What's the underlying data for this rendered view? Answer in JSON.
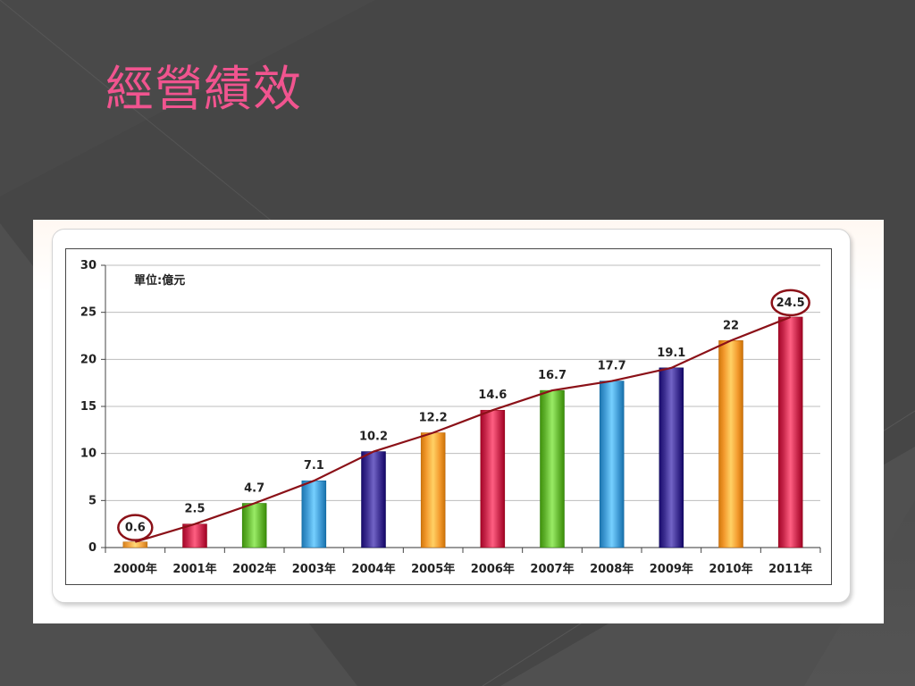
{
  "slide": {
    "title": "經營績效"
  },
  "chart_data": {
    "type": "bar",
    "title": "",
    "unit": "單位:億元",
    "categories": [
      "2000年",
      "2001年",
      "2002年",
      "2003年",
      "2004年",
      "2005年",
      "2006年",
      "2007年",
      "2008年",
      "2009年",
      "2010年",
      "2011年"
    ],
    "values": [
      0.6,
      2.5,
      4.7,
      7.1,
      10.2,
      12.2,
      14.6,
      16.7,
      17.7,
      19.1,
      22,
      24.5
    ],
    "labels": [
      "0.6",
      "2.5",
      "4.7",
      "7.1",
      "10.2",
      "12.2",
      "14.6",
      "16.7",
      "17.7",
      "19.1",
      "22",
      "24.5"
    ],
    "y_ticks": [
      0,
      5,
      10,
      15,
      20,
      25,
      30
    ],
    "ylim": [
      0,
      30
    ],
    "grid": true,
    "trendline": true,
    "highlighted_categories": [
      "2000年",
      "2011年"
    ],
    "colors": {
      "line": "#8b1118",
      "highlight": "#8b1118",
      "bars": [
        "#f4a441",
        "#c8284b",
        "#62b42f",
        "#3f99d3",
        "#3b2d8f",
        "#f39a2e",
        "#c8284b",
        "#62b42f",
        "#3f99d3",
        "#3b2d8f",
        "#f39a2e",
        "#c8284b"
      ]
    }
  }
}
